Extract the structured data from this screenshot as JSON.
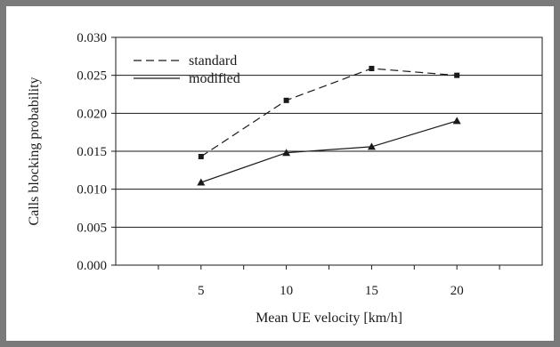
{
  "colors": {
    "frame": "#7a7a7a",
    "plot_border": "#1a1a1a",
    "grid": "#1a1a1a",
    "series": "#1a1a1a"
  },
  "chart_data": {
    "type": "line",
    "title": "",
    "xlabel": "Mean UE velocity [km/h]",
    "ylabel": "Calls blocking probability",
    "x": [
      5,
      10,
      15,
      20
    ],
    "x_ticks": [
      "5",
      "10",
      "15",
      "20"
    ],
    "y_ticks": [
      "0.000",
      "0.005",
      "0.010",
      "0.015",
      "0.020",
      "0.025",
      "0.030"
    ],
    "xlim": [
      0,
      25
    ],
    "ylim": [
      0.0,
      0.03
    ],
    "grid": "horizontal",
    "legend_position": "top-left",
    "series": [
      {
        "name": "standard",
        "values": [
          0.0143,
          0.0217,
          0.0259,
          0.025
        ],
        "line_style": "dashed",
        "marker": "square"
      },
      {
        "name": "modified",
        "values": [
          0.0109,
          0.0148,
          0.0156,
          0.019
        ],
        "line_style": "solid",
        "marker": "triangle"
      }
    ]
  }
}
